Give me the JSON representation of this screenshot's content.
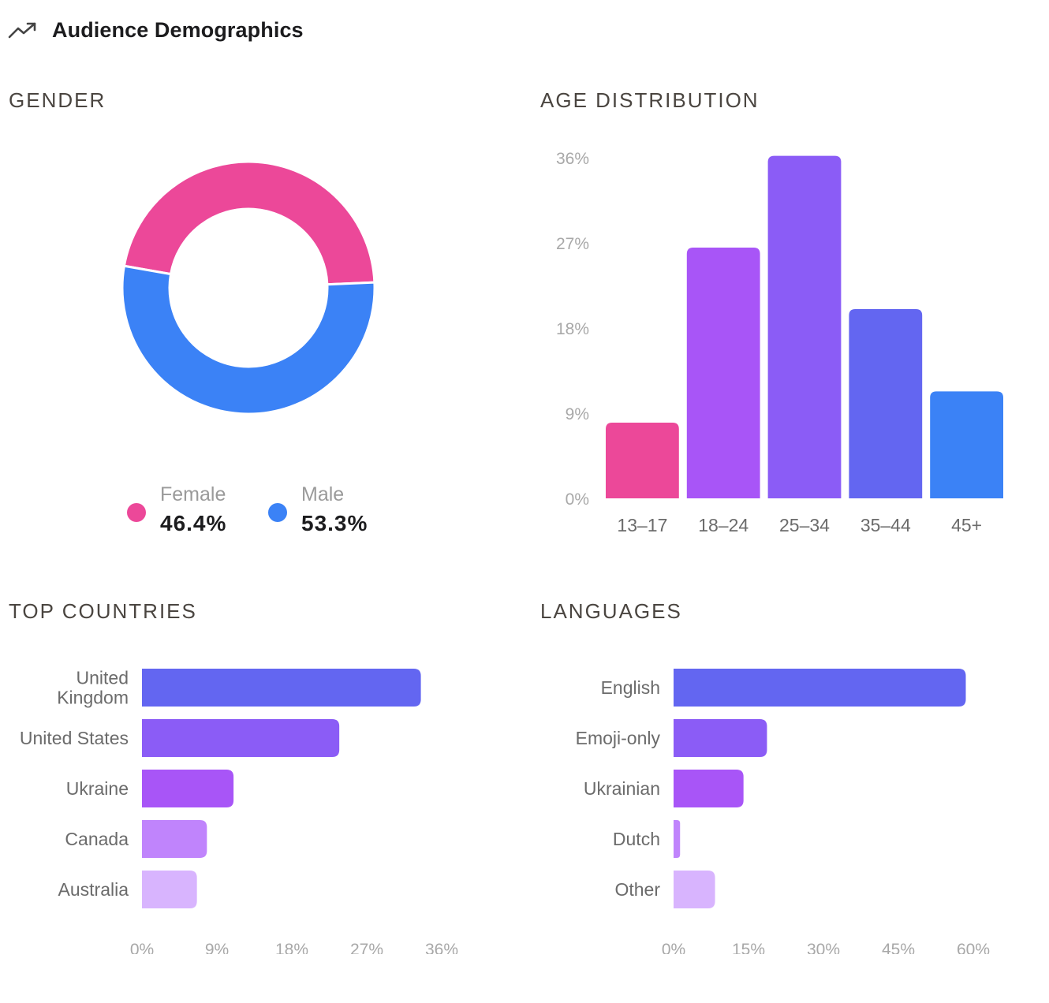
{
  "header": {
    "title": "Audience Demographics",
    "icon": "trending-up-icon"
  },
  "sections": {
    "gender": "GENDER",
    "age": "AGE DISTRIBUTION",
    "countries": "TOP COUNTRIES",
    "languages": "LANGUAGES"
  },
  "chart_data": [
    {
      "id": "gender",
      "type": "pie",
      "title": "GENDER",
      "series": [
        {
          "name": "Female",
          "value": 46.4,
          "label": "46.4%",
          "color": "#EC4899"
        },
        {
          "name": "Male",
          "value": 53.3,
          "label": "53.3%",
          "color": "#3B82F6"
        }
      ],
      "legend": "bottom"
    },
    {
      "id": "age",
      "type": "bar",
      "title": "AGE DISTRIBUTION",
      "orientation": "vertical",
      "categories": [
        "13–17",
        "18–24",
        "25–34",
        "35–44",
        "45+"
      ],
      "values": [
        8,
        26.5,
        36.2,
        20,
        11.3
      ],
      "colors": [
        "#EC4899",
        "#A855F7",
        "#8B5CF6",
        "#6366F1",
        "#3B82F6"
      ],
      "ylim": [
        0,
        36
      ],
      "yticks": [
        0,
        9,
        18,
        27,
        36
      ],
      "ytick_labels": [
        "0%",
        "9%",
        "18%",
        "27%",
        "36%"
      ],
      "grid": false
    },
    {
      "id": "countries",
      "type": "bar",
      "title": "TOP COUNTRIES",
      "orientation": "horizontal",
      "categories": [
        "United Kingdom",
        "United States",
        "Ukraine",
        "Canada",
        "Australia"
      ],
      "category_lines": [
        [
          "United",
          "Kingdom"
        ],
        [
          "United States"
        ],
        [
          "Ukraine"
        ],
        [
          "Canada"
        ],
        [
          "Australia"
        ]
      ],
      "values": [
        33.5,
        23.7,
        11,
        7.8,
        6.6
      ],
      "colors": [
        "#6366F1",
        "#8B5CF6",
        "#A855F7",
        "#C084FC",
        "#D8B4FE"
      ],
      "xlim": [
        0,
        36
      ],
      "xticks": [
        0,
        9,
        18,
        27,
        36
      ],
      "xtick_labels": [
        "0%",
        "9%",
        "18%",
        "27%",
        "36%"
      ],
      "grid": false
    },
    {
      "id": "languages",
      "type": "bar",
      "title": "LANGUAGES",
      "orientation": "horizontal",
      "categories": [
        "English",
        "Emoji-only",
        "Ukrainian",
        "Dutch",
        "Other"
      ],
      "category_lines": [
        [
          "English"
        ],
        [
          "Emoji-only"
        ],
        [
          "Ukrainian"
        ],
        [
          "Dutch"
        ],
        [
          "Other"
        ]
      ],
      "values": [
        58.5,
        18.7,
        14,
        1.3,
        8.3
      ],
      "colors": [
        "#6366F1",
        "#8B5CF6",
        "#A855F7",
        "#C084FC",
        "#D8B4FE"
      ],
      "xlim": [
        0,
        60
      ],
      "xticks": [
        0,
        15,
        30,
        45,
        60
      ],
      "xtick_labels": [
        "0%",
        "15%",
        "30%",
        "45%",
        "60%"
      ],
      "grid": false
    }
  ]
}
